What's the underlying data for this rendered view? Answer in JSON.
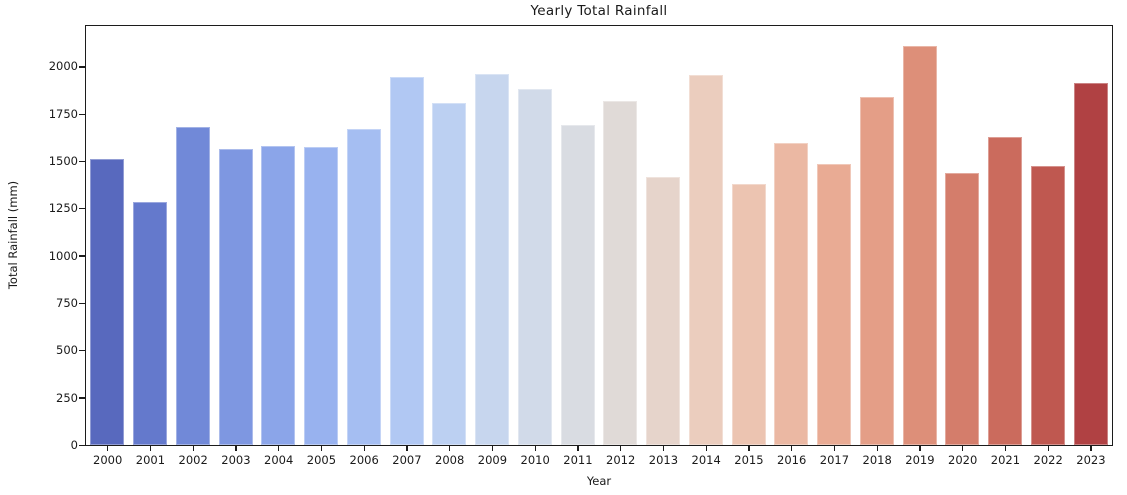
{
  "chart_data": {
    "type": "bar",
    "title": "Yearly Total Rainfall",
    "xlabel": "Year",
    "ylabel": "Total Rainfall (mm)",
    "categories": [
      "2000",
      "2001",
      "2002",
      "2003",
      "2004",
      "2005",
      "2006",
      "2007",
      "2008",
      "2009",
      "2010",
      "2011",
      "2012",
      "2013",
      "2014",
      "2015",
      "2016",
      "2017",
      "2018",
      "2019",
      "2020",
      "2021",
      "2022",
      "2023"
    ],
    "values": [
      1510,
      1287,
      1680,
      1566,
      1583,
      1578,
      1672,
      1948,
      1810,
      1960,
      1880,
      1692,
      1820,
      1419,
      1958,
      1381,
      1597,
      1486,
      1838,
      2107,
      1438,
      1627,
      1477,
      1912
    ],
    "bar_colors": [
      "#5869BE",
      "#6479CC",
      "#7189D8",
      "#7E97E1",
      "#8BA5E9",
      "#98B2EF",
      "#A5BEF2",
      "#B1C8F3",
      "#BCD0F2",
      "#C7D6EE",
      "#D1DAE9",
      "#D9DCE2",
      "#E0DAD7",
      "#E6D4CB",
      "#EBCDBE",
      "#ECC4B1",
      "#EBB8A3",
      "#E9AB94",
      "#E49E87",
      "#DD8F79",
      "#D47D6B",
      "#CB6B5D",
      "#BF5850",
      "#B04143"
    ],
    "ylim": [
      0,
      2215
    ],
    "yticks": [
      0,
      250,
      500,
      750,
      1000,
      1250,
      1500,
      1750,
      2000
    ],
    "grid": false,
    "legend": null,
    "axis_color": "#1c1c1c",
    "background_color": "#ffffff"
  }
}
